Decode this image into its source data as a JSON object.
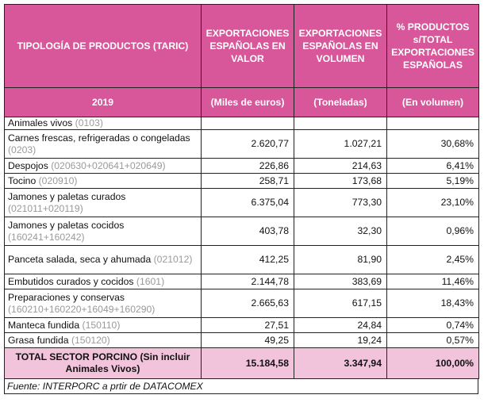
{
  "header": {
    "col1": "TIPOLOGÍA DE PRODUCTOS (TARIC)",
    "col2": "EXPORTACIONES ESPAÑOLAS  EN VALOR",
    "col3": "EXPORTACIONES ESPAÑOLAS EN VOLUMEN",
    "col4": "% PRODUCTOS s/TOTAL EXPORTACIONES ESPAÑOLAS",
    "year": "2019",
    "unit2": "(Miles de euros)",
    "unit3": "(Toneladas)",
    "unit4": "(En volumen)"
  },
  "rows": [
    {
      "name": "Animales vivos",
      "code": "(0103)",
      "valor": "",
      "volumen": "",
      "pct": ""
    },
    {
      "name": "Carnes frescas, refrigeradas o congeladas",
      "code": "(0203)",
      "valor": "2.620,77",
      "volumen": "1.027,21",
      "pct": "30,68%"
    },
    {
      "name": "Despojos",
      "code": "(020630+020641+020649)",
      "valor": "226,86",
      "volumen": "214,63",
      "pct": "6,41%"
    },
    {
      "name": "Tocino",
      "code": "(020910)",
      "valor": "258,71",
      "volumen": "173,68",
      "pct": "5,19%"
    },
    {
      "name": "Jamones y paletas curados",
      "code": "(021011+020119)",
      "valor": "6.375,04",
      "volumen": "773,30",
      "pct": "23,10%"
    },
    {
      "name": "Jamones y paletas cocidos",
      "code": "(160241+160242)",
      "valor": "403,78",
      "volumen": "32,30",
      "pct": "0,96%"
    },
    {
      "name": "Panceta salada, seca y ahumada",
      "code": "(021012)",
      "valor": "412,25",
      "volumen": "81,90",
      "pct": "2,45%"
    },
    {
      "name": "Embutidos curados y cocidos",
      "code": "(1601)",
      "valor": "2.144,78",
      "volumen": "383,69",
      "pct": "11,46%"
    },
    {
      "name": "Preparaciones y conservas",
      "code": "(160210+160220+16049+160290)",
      "valor": "2.665,63",
      "volumen": "617,15",
      "pct": "18,43%"
    },
    {
      "name": "Manteca fundida",
      "code": "(150110)",
      "valor": "27,51",
      "volumen": "24,84",
      "pct": "0,74%"
    },
    {
      "name": "Grasa fundida",
      "code": "(150120)",
      "valor": "49,25",
      "volumen": "19,24",
      "pct": "0,57%"
    }
  ],
  "total": {
    "label": "TOTAL SECTOR PORCINO (Sin incluir Animales Vivos)",
    "valor": "15.184,58",
    "volumen": "3.347,94",
    "pct": "100,00%"
  },
  "source": "Fuente:  INTERPORC a prtir de DATACOMEX",
  "colors": {
    "header": "#d7579a",
    "total": "#f2c4dc",
    "code": "#9a9a9a"
  }
}
